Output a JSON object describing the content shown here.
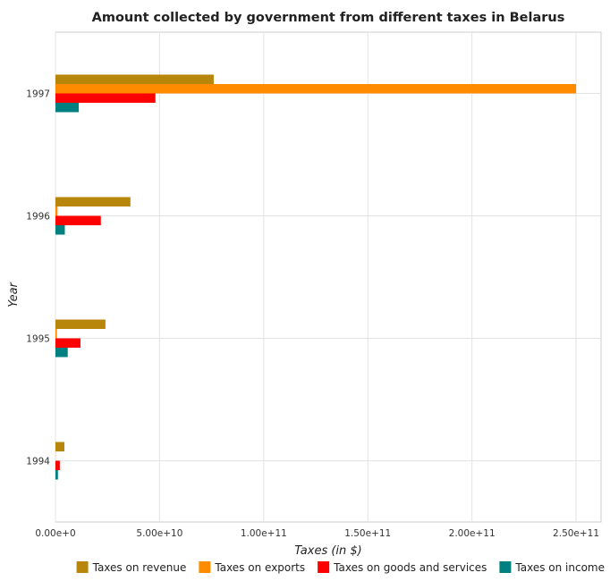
{
  "chart_data": {
    "type": "bar",
    "orientation": "horizontal",
    "title": "Amount collected by government from different taxes in Belarus",
    "xlabel": "Taxes (in $)",
    "ylabel": "Year",
    "categories": [
      "1994",
      "1995",
      "1996",
      "1997"
    ],
    "xlim": [
      0,
      262000000000
    ],
    "x_ticks": [
      {
        "value": 0,
        "label": "0.00e+0"
      },
      {
        "value": 50000000000,
        "label": "5.00e+10"
      },
      {
        "value": 100000000000,
        "label": "1.00e+11"
      },
      {
        "value": 150000000000,
        "label": "1.50e+11"
      },
      {
        "value": 200000000000,
        "label": "2.00e+11"
      },
      {
        "value": 250000000000,
        "label": "2.50e+11"
      }
    ],
    "grid": true,
    "legend_position": "bottom-right",
    "series": [
      {
        "name": "Taxes on revenue",
        "color": "#b8860b",
        "values": [
          4300000000,
          24000000000,
          36000000000,
          76000000000
        ]
      },
      {
        "name": "Taxes on exports",
        "color": "#ff8c00",
        "values": [
          40000000,
          700000000,
          1000000000,
          250000000000
        ]
      },
      {
        "name": "Taxes on goods and services",
        "color": "#ff0000",
        "values": [
          2100000000,
          12000000000,
          21800000000,
          48000000000
        ]
      },
      {
        "name": "Taxes on income",
        "color": "#008080",
        "values": [
          1200000000,
          5900000000,
          4500000000,
          11200000000
        ]
      }
    ]
  }
}
